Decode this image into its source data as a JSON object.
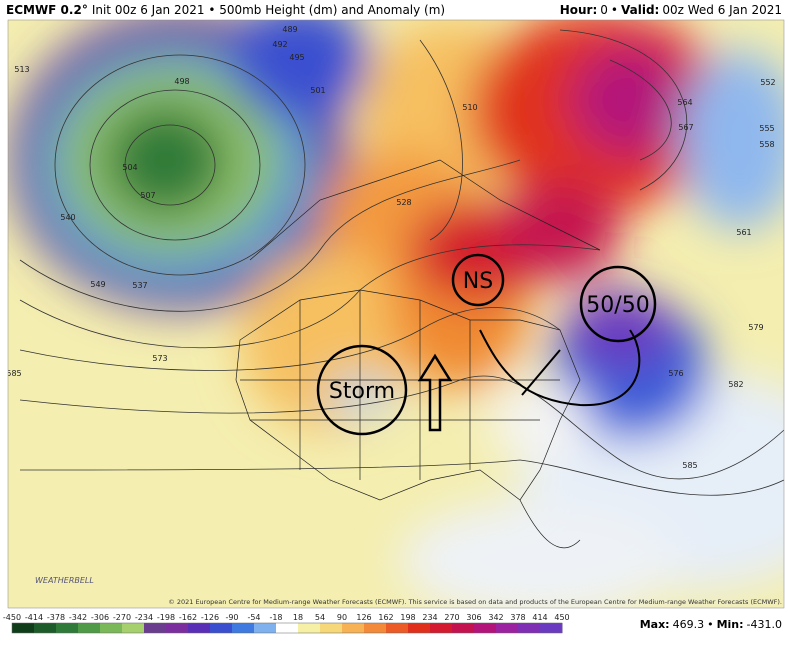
{
  "header": {
    "model": "ECMWF 0.2°",
    "title": "Init 00z 6 Jan 2021 • 500mb Height (dm) and Anomaly (m)",
    "hour_label": "Hour:",
    "hour": "0",
    "valid_label": "Valid:",
    "valid": "00z Wed 6 Jan 2021"
  },
  "annotations": [
    "NS",
    "50/50",
    "Storm"
  ],
  "contour_labels": [
    "489",
    "492",
    "495",
    "498",
    "501",
    "504",
    "507",
    "513",
    "540",
    "549",
    "537",
    "573",
    "585",
    "510",
    "528",
    "564",
    "567",
    "561",
    "558",
    "555",
    "552",
    "579",
    "576",
    "582",
    "585"
  ],
  "logo": "WEATHERBELL",
  "copyright": "© 2021 European Centre for Medium-range Weather Forecasts (ECMWF). This service is based on data and products of the European Centre for Medium-range Weather Forecasts (ECMWF).",
  "colorbar": {
    "ticks": [
      "-450",
      "-414",
      "-378",
      "-342",
      "-306",
      "-270",
      "-234",
      "-198",
      "-162",
      "-126",
      "-90",
      "-54",
      "-18",
      "18",
      "54",
      "90",
      "126",
      "162",
      "198",
      "234",
      "270",
      "306",
      "342",
      "378",
      "414",
      "450"
    ],
    "colors": [
      "#0f3d1a",
      "#1d5b2a",
      "#2f7a38",
      "#4e9a47",
      "#7bb85a",
      "#a6cf6e",
      "#6a3d8f",
      "#7b2f9f",
      "#5a2fb8",
      "#3a4fd0",
      "#3f7ae0",
      "#7fb1ee",
      "#ffffff",
      "#f6efa6",
      "#f6d77a",
      "#f6b255",
      "#f38a3a",
      "#ec5a26",
      "#e0301c",
      "#d41a2e",
      "#c4124f",
      "#b3147a",
      "#9b22a0",
      "#7e2fb3",
      "#6a3bc0"
    ]
  },
  "stats": {
    "max_label": "Max:",
    "max": "469.3",
    "min_label": "Min:",
    "min": "-431.0"
  }
}
